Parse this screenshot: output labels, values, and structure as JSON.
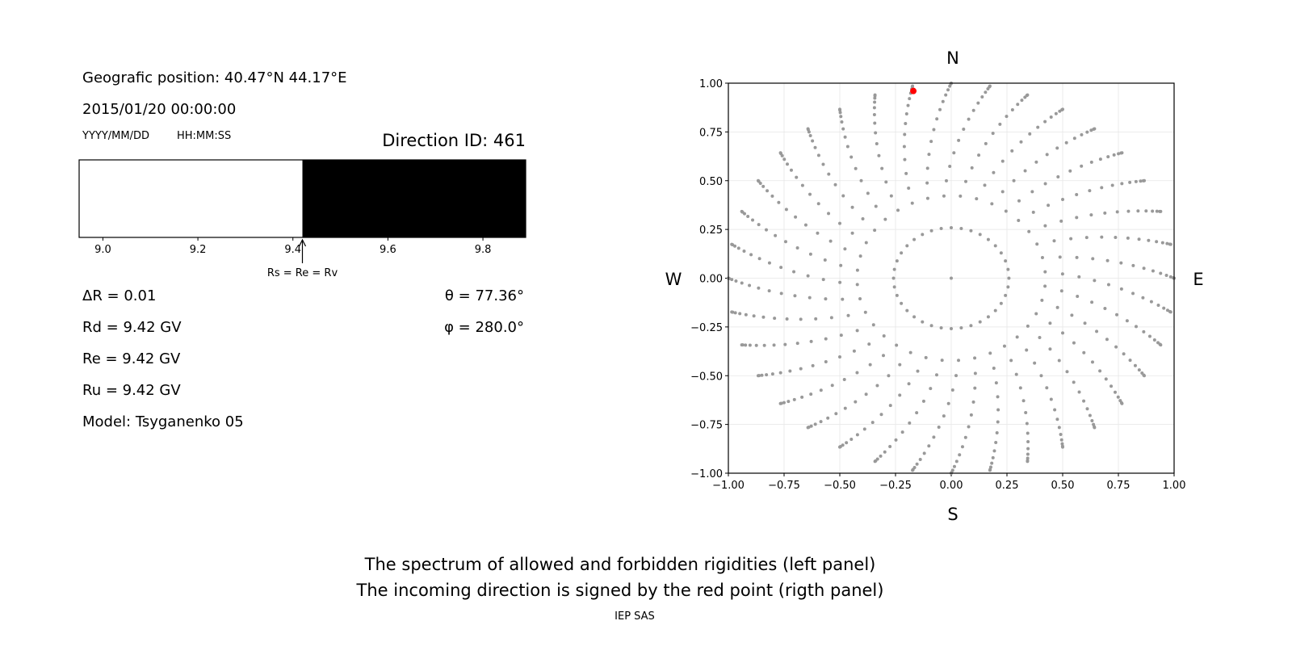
{
  "info": {
    "position": "Geografic position: 40.47°N 44.17°E",
    "datetime": "2015/01/20 00:00:00",
    "date_format": "YYYY/MM/DD",
    "time_format": "HH:MM:SS",
    "direction_id": "Direction ID: 461",
    "delta_r": "ΔR = 0.01",
    "rd": "Rd = 9.42 GV",
    "re": "Re = 9.42 GV",
    "ru": "Ru = 9.42 GV",
    "model": "Model: Tsyganenko 05",
    "theta": "θ = 77.36°",
    "phi": "φ = 280.0°"
  },
  "captions": {
    "line1": "The spectrum of allowed and forbidden rigidities (left panel)",
    "line2": "The incoming direction is signed by the red point (rigth panel)",
    "credit": "IEP SAS"
  },
  "chart_data": [
    {
      "type": "bar",
      "xlim": [
        8.95,
        9.89
      ],
      "xticks": [
        "9.0",
        "9.2",
        "9.4",
        "9.6",
        "9.8"
      ],
      "segments": [
        {
          "from": 8.95,
          "to": 9.42,
          "color": "#ffffff"
        },
        {
          "from": 9.42,
          "to": 9.89,
          "color": "#000000"
        }
      ],
      "annotation": {
        "text": "Rs = Re = Rv",
        "x": 9.42
      }
    },
    {
      "type": "scatter",
      "xlim": [
        -1,
        1
      ],
      "ylim": [
        -1,
        1
      ],
      "xticks": [
        "−1.00",
        "−0.75",
        "−0.50",
        "−0.25",
        "0.00",
        "0.25",
        "0.50",
        "0.75",
        "1.00"
      ],
      "yticks": [
        "−1.00",
        "−0.75",
        "−0.50",
        "−0.25",
        "0.00",
        "0.25",
        "0.50",
        "0.75",
        "1.00"
      ],
      "grid": true,
      "compass": {
        "north": "N",
        "south": "S",
        "west": "W",
        "east": "E"
      },
      "point_color": "#999999",
      "highlight_color": "#ff0000",
      "directions": {
        "azimuth_step_deg": 10,
        "zenith_deg": [
          0,
          15,
          25,
          30,
          35,
          40,
          45,
          50,
          55,
          60,
          65,
          70,
          75,
          80,
          85,
          90
        ]
      },
      "highlight": {
        "x": -0.17,
        "y": 0.96
      }
    }
  ]
}
